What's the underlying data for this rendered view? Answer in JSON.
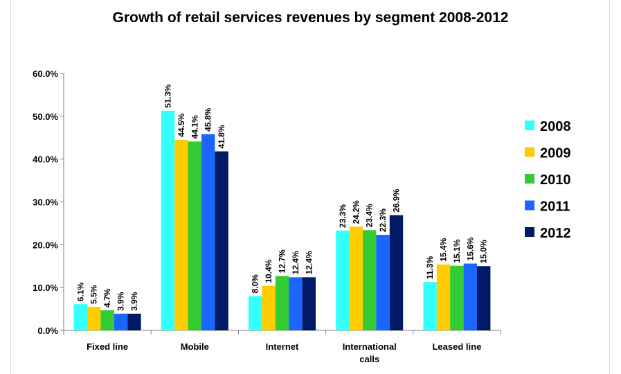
{
  "chart_data": {
    "type": "bar",
    "title": "Growth of retail services revenues by segment 2008-2012",
    "categories": [
      [
        "Fixed line"
      ],
      [
        "Mobile"
      ],
      [
        "Internet"
      ],
      [
        "International",
        "calls"
      ],
      [
        "Leased line"
      ]
    ],
    "series": [
      {
        "name": "2008",
        "color": "#33ffff",
        "values": [
          6.1,
          51.3,
          8.0,
          23.3,
          11.3
        ]
      },
      {
        "name": "2009",
        "color": "#ffcc00",
        "values": [
          5.5,
          44.5,
          10.4,
          24.2,
          15.4
        ]
      },
      {
        "name": "2010",
        "color": "#33cc33",
        "values": [
          4.7,
          44.1,
          12.7,
          23.4,
          15.1
        ]
      },
      {
        "name": "2011",
        "color": "#1a66ff",
        "values": [
          3.9,
          45.8,
          12.4,
          22.3,
          15.6
        ]
      },
      {
        "name": "2012",
        "color": "#001a66",
        "values": [
          3.9,
          41.8,
          12.4,
          26.9,
          15.0
        ]
      }
    ],
    "y_ticks": [
      "0.0%",
      "10.0%",
      "20.0%",
      "30.0%",
      "40.0%",
      "50.0%",
      "60.0%"
    ],
    "ylim": [
      0,
      60
    ],
    "value_suffix": "%",
    "legend_position": "right",
    "grid": false
  }
}
